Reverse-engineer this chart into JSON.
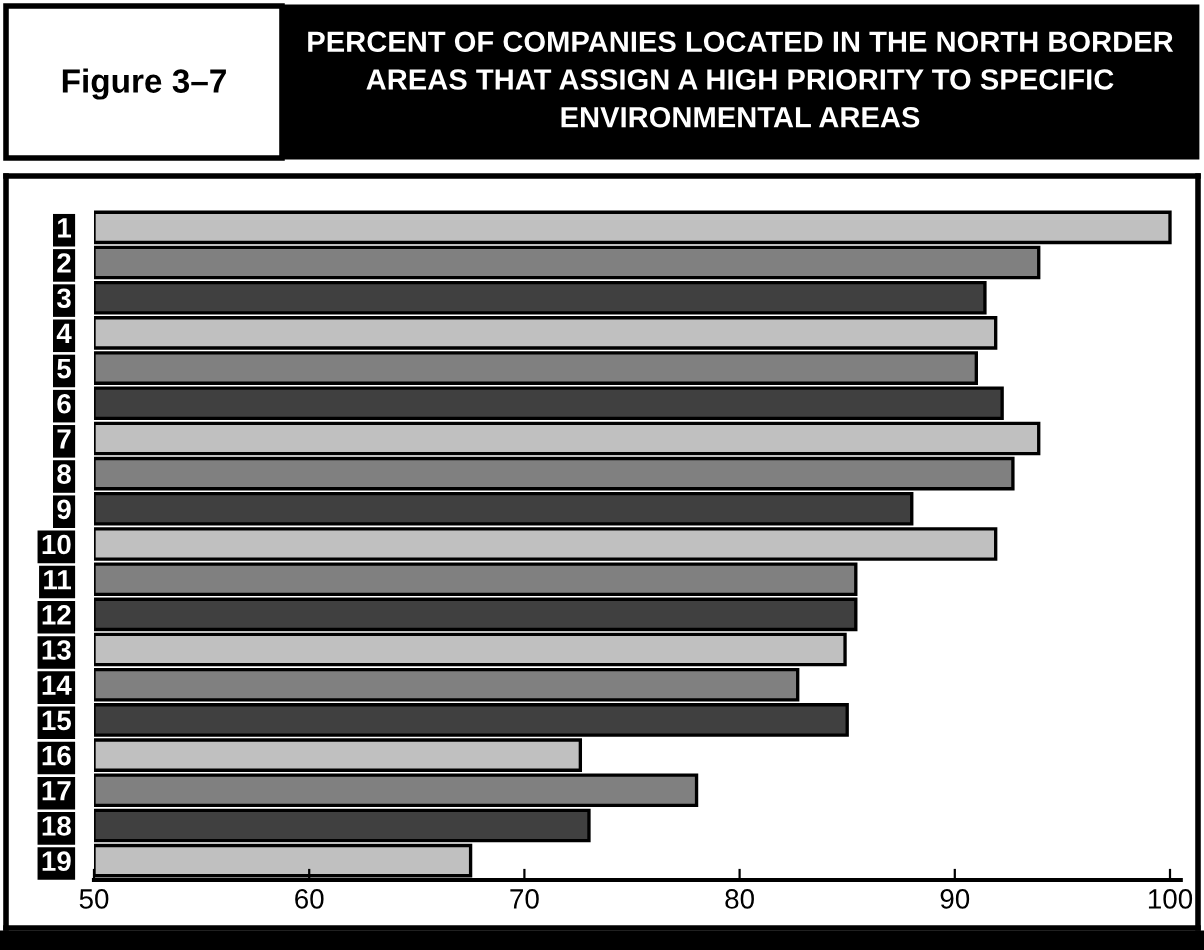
{
  "chart_data": {
    "type": "bar",
    "orientation": "horizontal",
    "title": "PERCENT OF COMPANIES LOCATED IN THE NORTH BORDER AREAS THAT ASSIGN A HIGH PRIORITY TO SPECIFIC ENVIRONMENTAL AREAS",
    "annotations": [
      "Figure 3–7"
    ],
    "categories": [
      "1",
      "2",
      "3",
      "4",
      "5",
      "6",
      "7",
      "8",
      "9",
      "10",
      "11",
      "12",
      "13",
      "14",
      "15",
      "16",
      "17",
      "18",
      "19"
    ],
    "values": [
      100.0,
      93.9,
      91.4,
      91.9,
      91.0,
      92.2,
      93.9,
      92.7,
      88.0,
      91.9,
      85.4,
      85.4,
      84.9,
      82.7,
      85.0,
      72.6,
      78.0,
      73.0,
      67.5
    ],
    "colors": [
      "#c0c0c0",
      "#808080",
      "#404040",
      "#c0c0c0",
      "#808080",
      "#404040",
      "#c0c0c0",
      "#808080",
      "#404040",
      "#c0c0c0",
      "#808080",
      "#404040",
      "#c0c0c0",
      "#808080",
      "#404040",
      "#c0c0c0",
      "#808080",
      "#404040",
      "#c0c0c0"
    ],
    "xlim": [
      50,
      100.5
    ],
    "xticks": [
      50,
      60,
      70,
      80,
      90,
      100
    ],
    "grid": false,
    "legend": false
  }
}
